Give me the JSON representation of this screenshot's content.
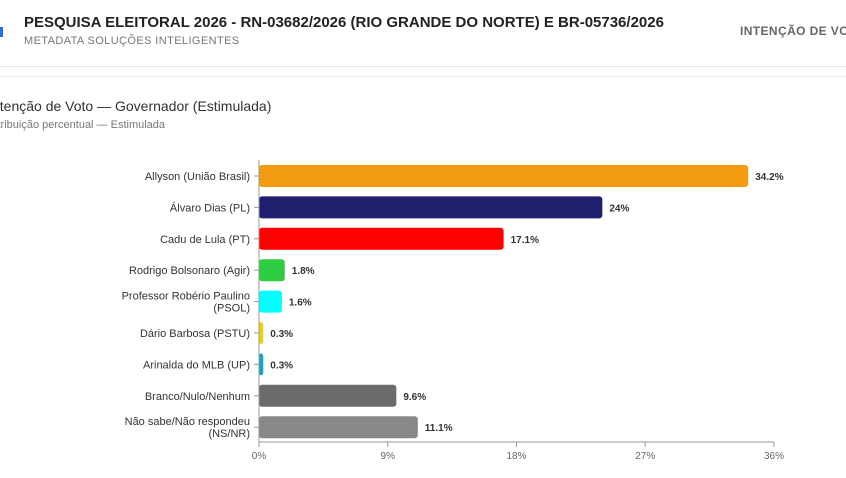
{
  "header": {
    "title": "PESQUISA ELEITORAL 2026 - RN-03682/2026 (RIO GRANDE DO NORTE) E BR-05736/2026",
    "subtitle": "METADATA SOLUÇÕES INTELIGENTES",
    "tab_label": "INTENÇÃO DE VO"
  },
  "chart_data": {
    "type": "bar",
    "orientation": "horizontal",
    "title": "ntenção de Voto — Governador (Estimulada)",
    "subtitle": "stribuição percentual — Estimulada",
    "categories": [
      "Allyson (União Brasil)",
      "Álvaro Dias (PL)",
      "Cadu de Lula (PT)",
      "Rodrigo Bolsonaro (Agir)",
      "Professor Robério Paulino (PSOL)",
      "Dário Barbosa (PSTU)",
      "Arinalda do MLB (UP)",
      "Branco/Nulo/Nenhum",
      "Não sabe/Não respondeu (NS/NR)"
    ],
    "values": [
      34.2,
      24,
      17.1,
      1.8,
      1.6,
      0.3,
      0.3,
      9.6,
      11.1
    ],
    "value_labels": [
      "34.2%",
      "24%",
      "17.1%",
      "1.8%",
      "1.6%",
      "0.3%",
      "0.3%",
      "9.6%",
      "11.1%"
    ],
    "colors": [
      "#f39c12",
      "#1f1f6e",
      "#ff0000",
      "#2ecc40",
      "#00ffff",
      "#f1d00a",
      "#17a2c8",
      "#6b6b6b",
      "#888888"
    ],
    "xlim": [
      0,
      36
    ],
    "xticks": [
      0,
      9,
      18,
      27,
      36
    ],
    "xtick_labels": [
      "0%",
      "9%",
      "18%",
      "27%",
      "36%"
    ]
  }
}
